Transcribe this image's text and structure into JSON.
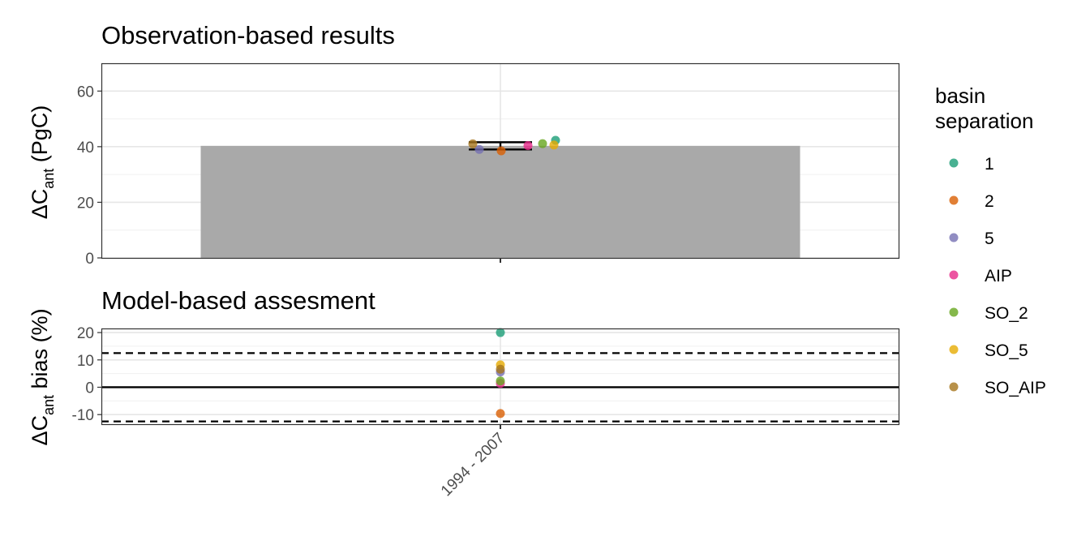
{
  "chart_data": [
    {
      "type": "bar",
      "title": "Observation-based results",
      "ylabel": "ΔCant (PgC)",
      "ylabel_parts": {
        "prefix": "ΔC",
        "sub": "ant",
        "suffix": " (PgC)"
      },
      "categories": [
        "1994 - 2007"
      ],
      "ylim": [
        0,
        70
      ],
      "yticks": [
        0,
        20,
        40,
        60
      ],
      "grid": true,
      "bar": {
        "value": 40.3,
        "color": "#a9a9a9"
      },
      "errorbar": {
        "ymin": 39.0,
        "ymax": 41.6
      },
      "points": [
        {
          "name": "1",
          "value": 42.3
        },
        {
          "name": "2",
          "value": 38.5
        },
        {
          "name": "5",
          "value": 39.0
        },
        {
          "name": "AIP",
          "value": 40.4
        },
        {
          "name": "SO_2",
          "value": 41.1
        },
        {
          "name": "SO_5",
          "value": 40.6
        },
        {
          "name": "SO_AIP",
          "value": 41.0
        }
      ]
    },
    {
      "type": "scatter",
      "title": "Model-based assesment",
      "ylabel": "ΔCant bias (%)",
      "ylabel_parts": {
        "prefix": "ΔC",
        "sub": "ant",
        "suffix": " bias (%)"
      },
      "categories": [
        "1994 - 2007"
      ],
      "ylim": [
        -13.5,
        21.5
      ],
      "yticks": [
        -10,
        0,
        10,
        20
      ],
      "grid": true,
      "reference_lines": {
        "solid": 0,
        "dashed": [
          12.5,
          -12.5
        ]
      },
      "points": [
        {
          "name": "1",
          "value": 20.0
        },
        {
          "name": "2",
          "value": -9.6
        },
        {
          "name": "5",
          "value": 5.6
        },
        {
          "name": "AIP",
          "value": 1.4
        },
        {
          "name": "SO_2",
          "value": 2.3
        },
        {
          "name": "SO_5",
          "value": 8.2
        },
        {
          "name": "SO_AIP",
          "value": 6.6
        }
      ]
    }
  ],
  "legend": {
    "title_line1": "basin",
    "title_line2": "separation",
    "placement": "right",
    "items": [
      {
        "label": "1",
        "color": "#1b9e77"
      },
      {
        "label": "2",
        "color": "#d95f02"
      },
      {
        "label": "5",
        "color": "#7570b3"
      },
      {
        "label": "AIP",
        "color": "#e7298a"
      },
      {
        "label": "SO_2",
        "color": "#66a61e"
      },
      {
        "label": "SO_5",
        "color": "#e6ab02"
      },
      {
        "label": "SO_AIP",
        "color": "#a6761d"
      }
    ]
  }
}
